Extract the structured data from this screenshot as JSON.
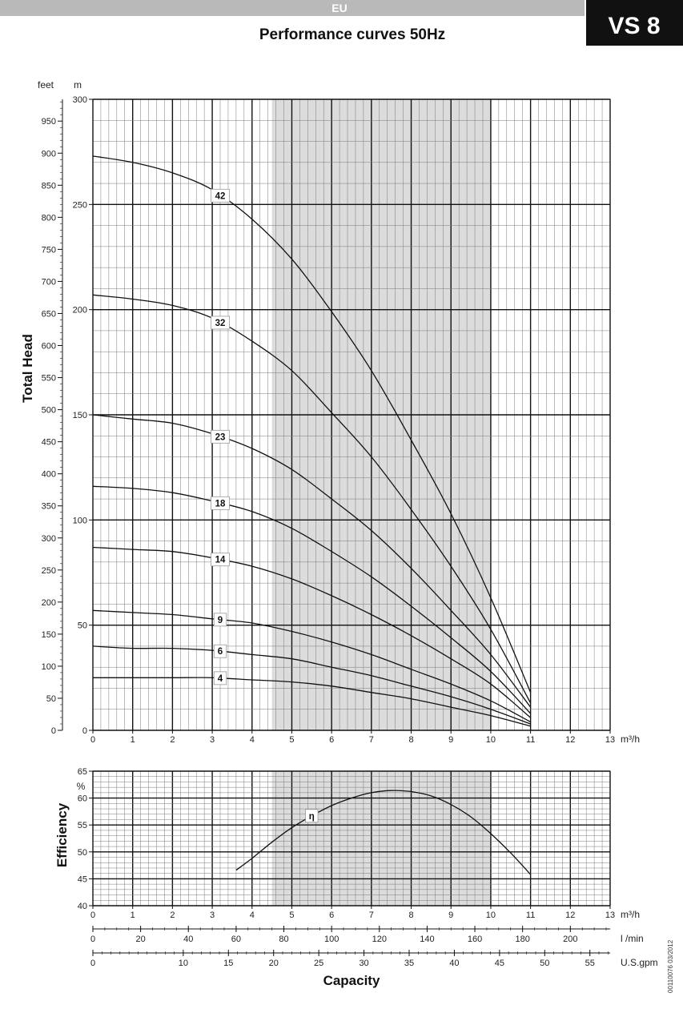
{
  "header": {
    "region": "EU",
    "model": "VS 8",
    "title": "Performance curves 50Hz"
  },
  "footer": {
    "capacity_label": "Capacity",
    "doc_code": "00110076  03/2012"
  },
  "style": {
    "shade_color": "#dcdcdc",
    "curve_color": "#111111",
    "grid_major": "#111111",
    "grid_minor": "#7a7a7a"
  },
  "chart_data": [
    {
      "type": "line",
      "name": "head",
      "ylabel": "Total Head",
      "y_unit": "m",
      "y2_unit": "feet",
      "x_unit": "m³/h",
      "xlim": [
        0,
        13
      ],
      "ylim": [
        0,
        300
      ],
      "y2lim": [
        0,
        984
      ],
      "x_ticks": [
        0,
        1,
        2,
        3,
        4,
        5,
        6,
        7,
        8,
        9,
        10,
        11,
        12,
        13
      ],
      "y_ticks": [
        0,
        50,
        100,
        150,
        200,
        250,
        300
      ],
      "y2_ticks": [
        0,
        50,
        100,
        150,
        200,
        250,
        300,
        350,
        400,
        450,
        500,
        550,
        600,
        650,
        700,
        750,
        800,
        850,
        900,
        950
      ],
      "shaded_x": [
        4.5,
        10
      ],
      "grid": true,
      "series": [
        {
          "name": "42",
          "label_x": 3.2,
          "x": [
            0,
            1,
            2,
            3,
            4,
            5,
            6,
            7,
            8,
            9,
            10,
            11
          ],
          "y": [
            273,
            270,
            265,
            257,
            243,
            224,
            199,
            171,
            138,
            103,
            63,
            18
          ]
        },
        {
          "name": "32",
          "label_x": 3.2,
          "x": [
            0,
            1,
            2,
            3,
            4,
            5,
            6,
            7,
            8,
            9,
            10,
            11
          ],
          "y": [
            207,
            205,
            202,
            196,
            185,
            171,
            151,
            130,
            105,
            78,
            48,
            13
          ]
        },
        {
          "name": "23",
          "label_x": 3.2,
          "x": [
            0,
            1,
            2,
            3,
            4,
            5,
            6,
            7,
            8,
            9,
            10,
            11
          ],
          "y": [
            150,
            148,
            146,
            141,
            134,
            124,
            110,
            95,
            77,
            57,
            36,
            11
          ]
        },
        {
          "name": "18",
          "label_x": 3.2,
          "x": [
            0,
            1,
            2,
            3,
            4,
            5,
            6,
            7,
            8,
            9,
            10,
            11
          ],
          "y": [
            116,
            115,
            113,
            109,
            104,
            96,
            85,
            73,
            59,
            44,
            28,
            8
          ]
        },
        {
          "name": "14",
          "label_x": 3.2,
          "x": [
            0,
            1,
            2,
            3,
            4,
            5,
            6,
            7,
            8,
            9,
            10,
            11
          ],
          "y": [
            87,
            86,
            85,
            82,
            78,
            72,
            64,
            55,
            45,
            34,
            22,
            6
          ]
        },
        {
          "name": "9",
          "label_x": 3.2,
          "x": [
            0,
            1,
            2,
            3,
            4,
            5,
            6,
            7,
            8,
            9,
            10,
            11
          ],
          "y": [
            57,
            56,
            55,
            53,
            51,
            47,
            42,
            36,
            29,
            22,
            14,
            4
          ]
        },
        {
          "name": "6",
          "label_x": 3.2,
          "x": [
            0,
            1,
            2,
            3,
            4,
            5,
            6,
            7,
            8,
            9,
            10,
            11
          ],
          "y": [
            40,
            39,
            39,
            38,
            36,
            34,
            30,
            26,
            21,
            16,
            10,
            3
          ]
        },
        {
          "name": "4",
          "label_x": 3.2,
          "x": [
            0,
            1,
            2,
            3,
            4,
            5,
            6,
            7,
            8,
            9,
            10,
            11
          ],
          "y": [
            25,
            25,
            25,
            25,
            24,
            23,
            21,
            18,
            15,
            11,
            7,
            2
          ]
        }
      ]
    },
    {
      "type": "line",
      "name": "efficiency",
      "ylabel": "Efficiency",
      "y_unit": "%",
      "x_unit": "m³/h",
      "xlim": [
        0,
        13
      ],
      "ylim": [
        40,
        65
      ],
      "x_ticks": [
        0,
        1,
        2,
        3,
        4,
        5,
        6,
        7,
        8,
        9,
        10,
        11,
        12,
        13
      ],
      "y_ticks": [
        40,
        45,
        50,
        55,
        60,
        65
      ],
      "shaded_x": [
        4.5,
        10
      ],
      "grid": true,
      "series": [
        {
          "name": "η",
          "label_x": 5.5,
          "x": [
            3.6,
            4,
            4.5,
            5,
            5.5,
            6,
            6.5,
            7,
            7.5,
            8,
            8.5,
            9,
            9.5,
            10,
            10.5,
            11
          ],
          "y": [
            46.6,
            48.8,
            51.8,
            54.5,
            56.7,
            58.6,
            60,
            61,
            61.4,
            61.2,
            60.4,
            58.8,
            56.5,
            53.4,
            49.8,
            45.8
          ]
        }
      ]
    },
    {
      "type": "axis",
      "name": "lmin",
      "x_unit": "l /min",
      "xlim": [
        0,
        216.67
      ],
      "x_ticks": [
        0,
        20,
        40,
        60,
        80,
        100,
        120,
        140,
        160,
        180,
        200
      ]
    },
    {
      "type": "axis",
      "name": "usgpm",
      "x_unit": "U.S.gpm",
      "xlim": [
        0,
        57.24
      ],
      "x_ticks": [
        0,
        10,
        15,
        20,
        25,
        30,
        35,
        40,
        45,
        50,
        55
      ]
    }
  ]
}
